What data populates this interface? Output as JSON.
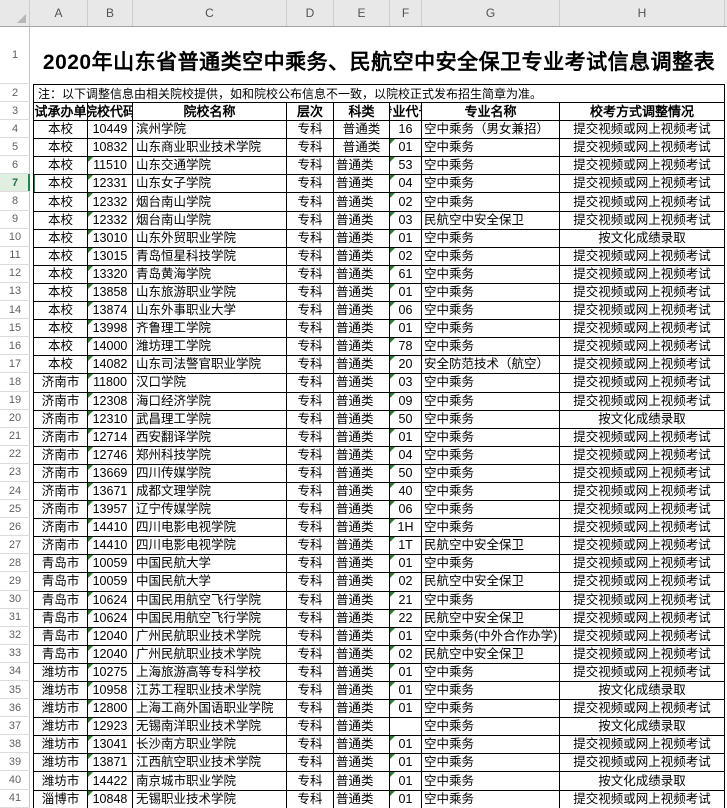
{
  "spreadsheet": {
    "column_letters": [
      "A",
      "B",
      "C",
      "D",
      "E",
      "F",
      "G",
      "H"
    ],
    "row_numbers": [
      1,
      2,
      3,
      4,
      5,
      6,
      7,
      8,
      9,
      10,
      11,
      12,
      13,
      14,
      15,
      16,
      17,
      18,
      19,
      20,
      21,
      22,
      23,
      24,
      25,
      26,
      27,
      28,
      29,
      30,
      31,
      32,
      33,
      34,
      35,
      36,
      37,
      38,
      39,
      40,
      41
    ],
    "selected_row": 7
  },
  "colors": {
    "error_triangle_green": "#2a7e2a",
    "selection_green": "#1e8a4f",
    "selected_gutter_bg": "#e1efe1",
    "chrome_gray": "#e8e8e8",
    "grid_border": "#000000"
  },
  "title": "2020年山东省普通类空中乘务、民航空中安全保卫专业考试信息调整表",
  "note": "注：以下调整信息由相关院校提供，如和院校公布信息不一致，以院校正式发布招生简章为准。",
  "table": {
    "headers": [
      "考试承办单位",
      "院校代码",
      "院校名称",
      "层次",
      "科类",
      "专业代号",
      "专业名称",
      "校考方式调整情况"
    ],
    "rows": [
      {
        "unit": "本校",
        "code": "10449",
        "name": "滨州学院",
        "level": "专科",
        "category": "普通类",
        "major_code": "16",
        "major": "空中乘务（男女兼招）",
        "method": "提交视频或网上视频考试",
        "code_flag": false,
        "mc_flag": false,
        "cat_center": true
      },
      {
        "unit": "本校",
        "code": "10832",
        "name": "山东商业职业技术学院",
        "level": "专科",
        "category": "普通类",
        "major_code": "01",
        "major": "空中乘务",
        "method": "提交视频或网上视频考试",
        "code_flag": false,
        "mc_flag": true,
        "cat_center": true
      },
      {
        "unit": "本校",
        "code": "11510",
        "name": "山东交通学院",
        "level": "专科",
        "category": "普通类",
        "major_code": "53",
        "major": "空中乘务",
        "method": "提交视频或网上视频考试",
        "code_flag": true,
        "mc_flag": true
      },
      {
        "unit": "本校",
        "code": "12331",
        "name": "山东女子学院",
        "level": "专科",
        "category": "普通类",
        "major_code": "04",
        "major": "空中乘务",
        "method": "提交视频或网上视频考试",
        "code_flag": true,
        "mc_flag": true,
        "selected": true
      },
      {
        "unit": "本校",
        "code": "12332",
        "name": "烟台南山学院",
        "level": "专科",
        "category": "普通类",
        "major_code": "02",
        "major": "空中乘务",
        "method": "提交视频或网上视频考试",
        "code_flag": true,
        "mc_flag": true
      },
      {
        "unit": "本校",
        "code": "12332",
        "name": "烟台南山学院",
        "level": "专科",
        "category": "普通类",
        "major_code": "03",
        "major": "民航空中安全保卫",
        "method": "提交视频或网上视频考试",
        "code_flag": true,
        "mc_flag": true
      },
      {
        "unit": "本校",
        "code": "13010",
        "name": "山东外贸职业学院",
        "level": "专科",
        "category": "普通类",
        "major_code": "01",
        "major": "空中乘务",
        "method": "按文化成绩录取",
        "code_flag": true,
        "mc_flag": true
      },
      {
        "unit": "本校",
        "code": "13015",
        "name": "青岛恒星科技学院",
        "level": "专科",
        "category": "普通类",
        "major_code": "02",
        "major": "空中乘务",
        "method": "提交视频或网上视频考试",
        "code_flag": true,
        "mc_flag": true
      },
      {
        "unit": "本校",
        "code": "13320",
        "name": "青岛黄海学院",
        "level": "专科",
        "category": "普通类",
        "major_code": "61",
        "major": "空中乘务",
        "method": "提交视频或网上视频考试",
        "code_flag": true,
        "mc_flag": true
      },
      {
        "unit": "本校",
        "code": "13858",
        "name": "山东旅游职业学院",
        "level": "专科",
        "category": "普通类",
        "major_code": "01",
        "major": "空中乘务",
        "method": "提交视频或网上视频考试",
        "code_flag": true,
        "mc_flag": true
      },
      {
        "unit": "本校",
        "code": "13874",
        "name": "山东外事职业大学",
        "level": "专科",
        "category": "普通类",
        "major_code": "06",
        "major": "空中乘务",
        "method": "提交视频或网上视频考试",
        "code_flag": true,
        "mc_flag": true
      },
      {
        "unit": "本校",
        "code": "13998",
        "name": "齐鲁理工学院",
        "level": "专科",
        "category": "普通类",
        "major_code": "01",
        "major": "空中乘务",
        "method": "提交视频或网上视频考试",
        "code_flag": true,
        "mc_flag": true
      },
      {
        "unit": "本校",
        "code": "14000",
        "name": "潍坊理工学院",
        "level": "专科",
        "category": "普通类",
        "major_code": "78",
        "major": "空中乘务",
        "method": "提交视频或网上视频考试",
        "code_flag": true,
        "mc_flag": true
      },
      {
        "unit": "本校",
        "code": "14082",
        "name": "山东司法警官职业学院",
        "level": "专科",
        "category": "普通类",
        "major_code": "20",
        "major": "安全防范技术（航空）",
        "method": "提交视频或网上视频考试",
        "code_flag": true,
        "mc_flag": true
      },
      {
        "unit": "济南市",
        "code": "11800",
        "name": "汉口学院",
        "level": "专科",
        "category": "普通类",
        "major_code": "03",
        "major": "空中乘务",
        "method": "提交视频或网上视频考试",
        "code_flag": true,
        "mc_flag": true
      },
      {
        "unit": "济南市",
        "code": "12308",
        "name": "海口经济学院",
        "level": "专科",
        "category": "普通类",
        "major_code": "09",
        "major": "空中乘务",
        "method": "提交视频或网上视频考试",
        "code_flag": true,
        "mc_flag": true
      },
      {
        "unit": "济南市",
        "code": "12310",
        "name": "武昌理工学院",
        "level": "专科",
        "category": "普通类",
        "major_code": "50",
        "major": "空中乘务",
        "method": "按文化成绩录取",
        "code_flag": true,
        "mc_flag": true
      },
      {
        "unit": "济南市",
        "code": "12714",
        "name": "西安翻译学院",
        "level": "专科",
        "category": "普通类",
        "major_code": "01",
        "major": "空中乘务",
        "method": "提交视频或网上视频考试",
        "code_flag": true,
        "mc_flag": true
      },
      {
        "unit": "济南市",
        "code": "12746",
        "name": "郑州科技学院",
        "level": "专科",
        "category": "普通类",
        "major_code": "04",
        "major": "空中乘务",
        "method": "提交视频或网上视频考试",
        "code_flag": true,
        "mc_flag": true
      },
      {
        "unit": "济南市",
        "code": "13669",
        "name": "四川传媒学院",
        "level": "专科",
        "category": "普通类",
        "major_code": "50",
        "major": "空中乘务",
        "method": "提交视频或网上视频考试",
        "code_flag": true,
        "mc_flag": true
      },
      {
        "unit": "济南市",
        "code": "13671",
        "name": "成都文理学院",
        "level": "专科",
        "category": "普通类",
        "major_code": "40",
        "major": "空中乘务",
        "method": "提交视频或网上视频考试",
        "code_flag": true,
        "mc_flag": true
      },
      {
        "unit": "济南市",
        "code": "13957",
        "name": "辽宁传媒学院",
        "level": "专科",
        "category": "普通类",
        "major_code": "06",
        "major": "空中乘务",
        "method": "提交视频或网上视频考试",
        "code_flag": true,
        "mc_flag": true
      },
      {
        "unit": "济南市",
        "code": "14410",
        "name": "四川电影电视学院",
        "level": "专科",
        "category": "普通类",
        "major_code": "1H",
        "major": "空中乘务",
        "method": "提交视频或网上视频考试",
        "code_flag": true,
        "mc_flag": true
      },
      {
        "unit": "济南市",
        "code": "14410",
        "name": "四川电影电视学院",
        "level": "专科",
        "category": "普通类",
        "major_code": "1T",
        "major": "民航空中安全保卫",
        "method": "提交视频或网上视频考试",
        "code_flag": true,
        "mc_flag": true
      },
      {
        "unit": "青岛市",
        "code": "10059",
        "name": "中国民航大学",
        "level": "专科",
        "category": "普通类",
        "major_code": "01",
        "major": "空中乘务",
        "method": "提交视频或网上视频考试",
        "code_flag": true,
        "mc_flag": true
      },
      {
        "unit": "青岛市",
        "code": "10059",
        "name": "中国民航大学",
        "level": "专科",
        "category": "普通类",
        "major_code": "02",
        "major": "民航空中安全保卫",
        "method": "提交视频或网上视频考试",
        "code_flag": true,
        "mc_flag": true
      },
      {
        "unit": "青岛市",
        "code": "10624",
        "name": "中国民用航空飞行学院",
        "level": "专科",
        "category": "普通类",
        "major_code": "21",
        "major": "空中乘务",
        "method": "提交视频或网上视频考试",
        "code_flag": true,
        "mc_flag": true
      },
      {
        "unit": "青岛市",
        "code": "10624",
        "name": "中国民用航空飞行学院",
        "level": "专科",
        "category": "普通类",
        "major_code": "22",
        "major": "民航空中安全保卫",
        "method": "提交视频或网上视频考试",
        "code_flag": true,
        "mc_flag": true
      },
      {
        "unit": "青岛市",
        "code": "12040",
        "name": "广州民航职业技术学院",
        "level": "专科",
        "category": "普通类",
        "major_code": "01",
        "major": "空中乘务(中外合作办学)",
        "method": "提交视频或网上视频考试",
        "code_flag": true,
        "mc_flag": true
      },
      {
        "unit": "青岛市",
        "code": "12040",
        "name": "广州民航职业技术学院",
        "level": "专科",
        "category": "普通类",
        "major_code": "02",
        "major": "民航空中安全保卫",
        "method": "提交视频或网上视频考试",
        "code_flag": true,
        "mc_flag": true
      },
      {
        "unit": "潍坊市",
        "code": "10275",
        "name": "上海旅游高等专科学校",
        "level": "专科",
        "category": "普通类",
        "major_code": "01",
        "major": "空中乘务",
        "method": "提交视频或网上视频考试",
        "code_flag": true,
        "mc_flag": true
      },
      {
        "unit": "潍坊市",
        "code": "10958",
        "name": "江苏工程职业技术学院",
        "level": "专科",
        "category": "普通类",
        "major_code": "01",
        "major": "空中乘务",
        "method": "按文化成绩录取",
        "code_flag": true,
        "mc_flag": true
      },
      {
        "unit": "潍坊市",
        "code": "12800",
        "name": "上海工商外国语职业学院",
        "level": "专科",
        "category": "普通类",
        "major_code": "01",
        "major": "空中乘务",
        "method": "提交视频或网上视频考试",
        "code_flag": true,
        "mc_flag": true
      },
      {
        "unit": "潍坊市",
        "code": "12923",
        "name": "无锡南洋职业技术学院",
        "level": "专科",
        "category": "普通类",
        "major_code": "",
        "major": "空中乘务",
        "method": "按文化成绩录取",
        "code_flag": true,
        "mc_flag": false
      },
      {
        "unit": "潍坊市",
        "code": "13041",
        "name": "长沙南方职业学院",
        "level": "专科",
        "category": "普通类",
        "major_code": "01",
        "major": "空中乘务",
        "method": "提交视频或网上视频考试",
        "code_flag": true,
        "mc_flag": true
      },
      {
        "unit": "潍坊市",
        "code": "13871",
        "name": "江西航空职业技术学院",
        "level": "专科",
        "category": "普通类",
        "major_code": "01",
        "major": "空中乘务",
        "method": "提交视频或网上视频考试",
        "code_flag": true,
        "mc_flag": true
      },
      {
        "unit": "潍坊市",
        "code": "14422",
        "name": "南京城市职业学院",
        "level": "专科",
        "category": "普通类",
        "major_code": "01",
        "major": "空中乘务",
        "method": "按文化成绩录取",
        "code_flag": true,
        "mc_flag": true
      },
      {
        "unit": "淄博市",
        "code": "10848",
        "name": "无锡职业技术学院",
        "level": "专科",
        "category": "普通类",
        "major_code": "01",
        "major": "空中乘务",
        "method": "提交视频或网上视频考试",
        "code_flag": true,
        "mc_flag": true
      }
    ]
  }
}
